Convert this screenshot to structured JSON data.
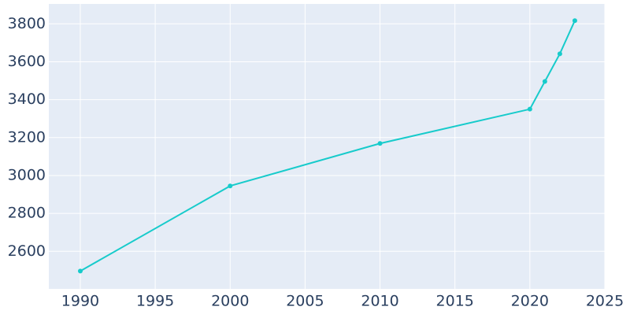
{
  "chart_data": {
    "type": "line",
    "x": [
      1990,
      2000,
      2010,
      2020,
      2021,
      2022,
      2023
    ],
    "series": [
      {
        "color": "#17cbcb",
        "values": [
          2496,
          2945,
          3169,
          3350,
          3496,
          3642,
          3817
        ]
      }
    ],
    "xlim": [
      1987.9,
      2025
    ],
    "xticks": [
      1990,
      1995,
      2000,
      2005,
      2010,
      2015,
      2020,
      2025
    ],
    "ylim": [
      2402,
      3905
    ],
    "yticks": [
      2600,
      2800,
      3000,
      3200,
      3400,
      3600,
      3800
    ],
    "grid": true
  }
}
